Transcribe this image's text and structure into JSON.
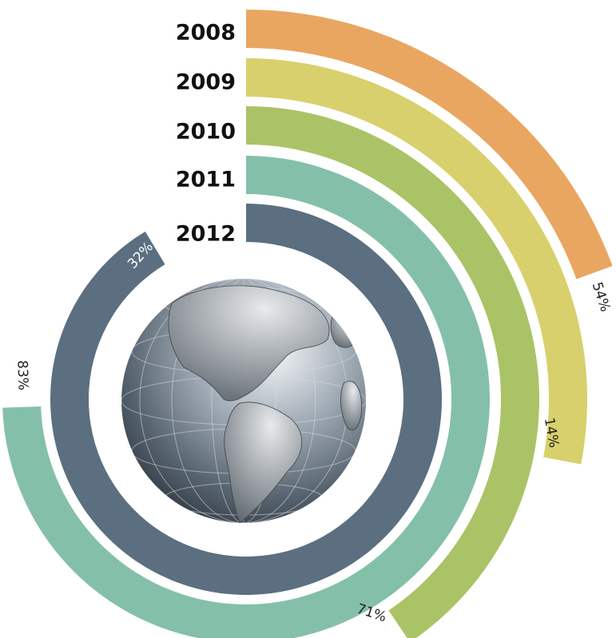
{
  "rings": [
    {
      "year": "2008",
      "label": "54%",
      "color": "#e9a661"
    },
    {
      "year": "2009",
      "label": "14%",
      "color": "#d8d06c"
    },
    {
      "year": "2010",
      "label": "71%",
      "color": "#abc367"
    },
    {
      "year": "2011",
      "label": "83%",
      "color": "#84c0a9"
    },
    {
      "year": "2012",
      "label": "32%",
      "color": "#5b6f80"
    }
  ]
}
